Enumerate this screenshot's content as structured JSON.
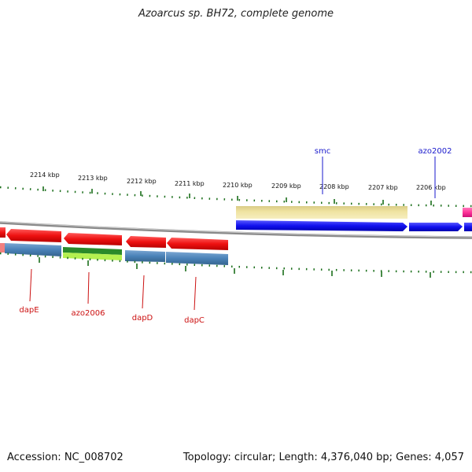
{
  "title": "Azoarcus sp. BH72, complete genome",
  "footer": {
    "accession": "Accession: NC_008702",
    "summary": "Topology: circular; Length: 4,376,040 bp; Genes: 4,057"
  },
  "scale": {
    "unit": "kbp",
    "labels": [
      "2214 kbp",
      "2213 kbp",
      "2212 kbp",
      "2211 kbp",
      "2210 kbp",
      "2209 kbp",
      "2208 kbp",
      "2207 kbp",
      "2206 kbp"
    ]
  },
  "gene_labels": [
    {
      "text": "smc",
      "color": "#1a1acc"
    },
    {
      "text": "azo2002",
      "color": "#1a1acc"
    },
    {
      "text": "dapE",
      "color": "#cc1111"
    },
    {
      "text": "azo2006",
      "color": "#cc1111"
    },
    {
      "text": "dapD",
      "color": "#cc1111"
    },
    {
      "text": "dapC",
      "color": "#cc1111"
    }
  ],
  "colors": {
    "forward_gene": "#1010ee",
    "reverse_gene": "#ee1111",
    "cog_blue": "#4a82b8",
    "cog_green": "#2a8a2a",
    "cog_yellowgreen": "#b4f050",
    "cog_khaki": "#efe2a0",
    "cog_pink": "#ff3399",
    "tick": "#1a6e1a",
    "backbone": "#888888"
  }
}
